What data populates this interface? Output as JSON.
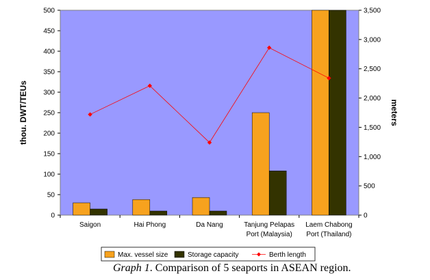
{
  "caption": {
    "label": "Graph 1",
    "text": ". Comparison of 5 seaports in ASEAN region."
  },
  "chart_data": {
    "type": "bar",
    "categories": [
      [
        "Saigon"
      ],
      [
        "Hai Phong"
      ],
      [
        "Da Nang"
      ],
      [
        "Tanjung Pelapas",
        "Port (Malaysia)"
      ],
      [
        "Laem Chabong",
        "Port (Thailand)"
      ]
    ],
    "series": [
      {
        "name": "Max. vessel size",
        "type": "bar",
        "axis": "left",
        "color": "#F7A21E",
        "values": [
          30,
          38,
          43,
          250,
          500
        ]
      },
      {
        "name": "Storage capacity",
        "type": "bar",
        "axis": "left",
        "color": "#333300",
        "values": [
          15,
          10,
          10,
          108,
          500
        ]
      },
      {
        "name": "Berth length",
        "type": "line",
        "axis": "right",
        "color": "#FF0000",
        "values": [
          1720,
          2210,
          1240,
          2860,
          2340
        ]
      }
    ],
    "ylabel": "thou. DWT/TEUs",
    "y2label": "meters",
    "ylim": [
      0,
      500
    ],
    "y2lim": [
      0,
      3500
    ],
    "yticks": [
      "0",
      "50",
      "100",
      "150",
      "200",
      "250",
      "300",
      "350",
      "400",
      "450",
      "500"
    ],
    "y2ticks": [
      "0",
      "500",
      "1,000",
      "1,500",
      "2,000",
      "2,500",
      "3,000",
      "3,500"
    ],
    "plot_background": "#9999FF",
    "grid": false,
    "legend_position": "bottom"
  }
}
